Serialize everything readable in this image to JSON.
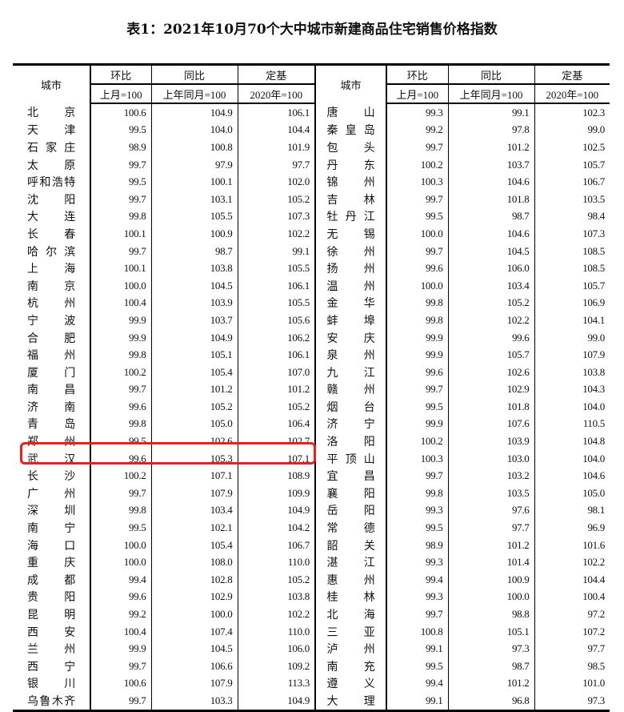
{
  "title": "表1：2021年10月70个大中城市新建商品住宅销售价格指数",
  "headers": {
    "city": "城市",
    "mom": "环比",
    "yoy": "同比",
    "base": "定基",
    "mom_sub": "上月=100",
    "yoy_sub": "上年同月=100",
    "base_sub": "2020年=100"
  },
  "highlight_color": "#e8201c",
  "highlighted_city": "武汉",
  "rows": [
    [
      [
        "北京",
        "100.6",
        "104.9",
        "106.1"
      ],
      [
        "唐山",
        "99.3",
        "99.1",
        "102.3"
      ]
    ],
    [
      [
        "天津",
        "99.5",
        "104.0",
        "104.4"
      ],
      [
        "秦皇岛",
        "99.2",
        "97.8",
        "99.0"
      ]
    ],
    [
      [
        "石家庄",
        "98.9",
        "100.8",
        "101.9"
      ],
      [
        "包头",
        "99.7",
        "101.2",
        "102.5"
      ]
    ],
    [
      [
        "太原",
        "99.7",
        "97.9",
        "97.7"
      ],
      [
        "丹东",
        "100.2",
        "103.7",
        "105.7"
      ]
    ],
    [
      [
        "呼和浩特",
        "99.5",
        "100.1",
        "102.0"
      ],
      [
        "锦州",
        "100.3",
        "104.6",
        "106.7"
      ]
    ],
    [
      [
        "沈阳",
        "99.7",
        "103.1",
        "105.2"
      ],
      [
        "吉林",
        "99.7",
        "101.8",
        "103.5"
      ]
    ],
    [
      [
        "大连",
        "99.8",
        "105.5",
        "107.3"
      ],
      [
        "牡丹江",
        "99.5",
        "98.7",
        "98.4"
      ]
    ],
    [
      [
        "长春",
        "100.1",
        "100.9",
        "102.2"
      ],
      [
        "无锡",
        "100.0",
        "104.6",
        "107.3"
      ]
    ],
    [
      [
        "哈尔滨",
        "99.7",
        "98.7",
        "99.1"
      ],
      [
        "徐州",
        "99.7",
        "104.5",
        "108.5"
      ]
    ],
    [
      [
        "上海",
        "100.1",
        "103.8",
        "105.5"
      ],
      [
        "扬州",
        "99.6",
        "106.0",
        "108.5"
      ]
    ],
    [
      [
        "南京",
        "100.0",
        "104.5",
        "106.1"
      ],
      [
        "温州",
        "100.0",
        "103.4",
        "105.7"
      ]
    ],
    [
      [
        "杭州",
        "100.4",
        "103.9",
        "105.5"
      ],
      [
        "金华",
        "99.8",
        "105.2",
        "106.9"
      ]
    ],
    [
      [
        "宁波",
        "99.9",
        "103.7",
        "105.6"
      ],
      [
        "蚌埠",
        "99.8",
        "102.2",
        "104.1"
      ]
    ],
    [
      [
        "合肥",
        "99.9",
        "104.9",
        "106.2"
      ],
      [
        "安庆",
        "99.9",
        "99.6",
        "99.0"
      ]
    ],
    [
      [
        "福州",
        "99.8",
        "105.1",
        "106.1"
      ],
      [
        "泉州",
        "99.9",
        "105.7",
        "107.9"
      ]
    ],
    [
      [
        "厦门",
        "100.2",
        "105.4",
        "107.0"
      ],
      [
        "九江",
        "99.6",
        "102.6",
        "103.8"
      ]
    ],
    [
      [
        "南昌",
        "99.7",
        "101.2",
        "101.2"
      ],
      [
        "赣州",
        "99.7",
        "102.9",
        "104.3"
      ]
    ],
    [
      [
        "济南",
        "99.6",
        "105.2",
        "105.2"
      ],
      [
        "烟台",
        "99.5",
        "101.8",
        "104.0"
      ]
    ],
    [
      [
        "青岛",
        "99.8",
        "105.0",
        "106.4"
      ],
      [
        "济宁",
        "99.9",
        "107.6",
        "110.5"
      ]
    ],
    [
      [
        "郑州",
        "99.5",
        "102.6",
        "102.7"
      ],
      [
        "洛阳",
        "100.2",
        "103.9",
        "104.8"
      ]
    ],
    [
      [
        "武汉",
        "99.6",
        "105.3",
        "107.1"
      ],
      [
        "平顶山",
        "100.3",
        "103.0",
        "104.0"
      ]
    ],
    [
      [
        "长沙",
        "100.2",
        "107.1",
        "108.9"
      ],
      [
        "宜昌",
        "99.7",
        "103.2",
        "104.6"
      ]
    ],
    [
      [
        "广州",
        "99.7",
        "107.9",
        "109.9"
      ],
      [
        "襄阳",
        "99.8",
        "103.5",
        "105.0"
      ]
    ],
    [
      [
        "深圳",
        "99.8",
        "103.4",
        "104.9"
      ],
      [
        "岳阳",
        "99.3",
        "97.6",
        "98.1"
      ]
    ],
    [
      [
        "南宁",
        "99.5",
        "102.1",
        "104.2"
      ],
      [
        "常德",
        "99.5",
        "97.7",
        "96.9"
      ]
    ],
    [
      [
        "海口",
        "100.0",
        "105.4",
        "106.7"
      ],
      [
        "韶关",
        "98.9",
        "101.2",
        "101.6"
      ]
    ],
    [
      [
        "重庆",
        "100.0",
        "108.0",
        "110.0"
      ],
      [
        "湛江",
        "99.3",
        "101.4",
        "102.2"
      ]
    ],
    [
      [
        "成都",
        "99.4",
        "102.8",
        "105.2"
      ],
      [
        "惠州",
        "99.4",
        "100.9",
        "104.4"
      ]
    ],
    [
      [
        "贵阳",
        "99.6",
        "102.9",
        "103.8"
      ],
      [
        "桂林",
        "99.3",
        "100.0",
        "100.4"
      ]
    ],
    [
      [
        "昆明",
        "99.2",
        "100.0",
        "102.2"
      ],
      [
        "北海",
        "99.7",
        "98.8",
        "97.2"
      ]
    ],
    [
      [
        "西安",
        "100.4",
        "107.4",
        "110.0"
      ],
      [
        "三亚",
        "100.8",
        "105.1",
        "107.2"
      ]
    ],
    [
      [
        "兰州",
        "99.9",
        "104.5",
        "106.0"
      ],
      [
        "泸州",
        "99.1",
        "97.3",
        "97.7"
      ]
    ],
    [
      [
        "西宁",
        "99.7",
        "106.6",
        "109.2"
      ],
      [
        "南充",
        "99.5",
        "98.7",
        "98.5"
      ]
    ],
    [
      [
        "银川",
        "100.6",
        "107.9",
        "113.3"
      ],
      [
        "遵义",
        "99.4",
        "101.2",
        "101.0"
      ]
    ],
    [
      [
        "乌鲁木齐",
        "99.7",
        "103.3",
        "104.9"
      ],
      [
        "大理",
        "99.1",
        "96.8",
        "97.3"
      ]
    ]
  ]
}
